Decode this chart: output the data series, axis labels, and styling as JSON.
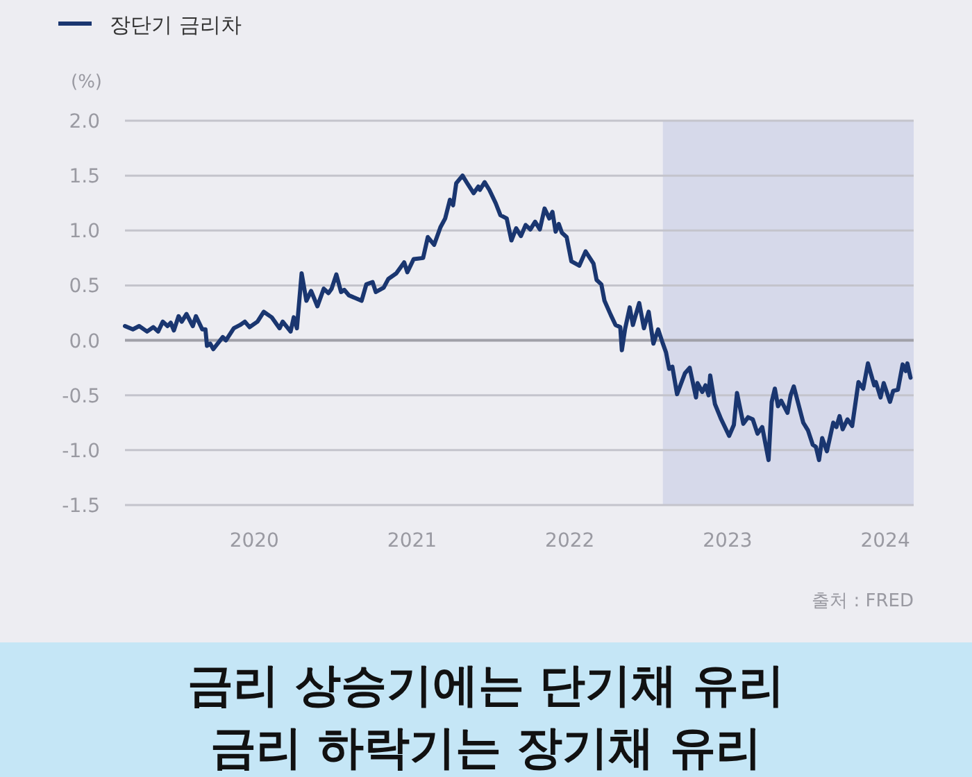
{
  "chart_data": {
    "type": "line",
    "ylabel": "(%)",
    "annotations": [
      "출처 : FRED",
      "금리 상승기에는 단기채 유리",
      "금리 하락기는 장기채 유리"
    ],
    "xlim": [
      2019.18,
      2024.18
    ],
    "xticks": [
      2020,
      2021,
      2022,
      2023,
      2024
    ],
    "ylim": [
      -1.5,
      2.0
    ],
    "yticks": [
      {
        "value": 2.0,
        "label": "2.0"
      },
      {
        "value": 1.5,
        "label": "1.5"
      },
      {
        "value": 1.0,
        "label": "1.0"
      },
      {
        "value": 0.5,
        "label": "0.5"
      },
      {
        "value": 0.0,
        "label": "0.0"
      },
      {
        "value": -0.5,
        "label": "-0.5"
      },
      {
        "value": -1.0,
        "label": "-1.0"
      },
      {
        "value": -1.5,
        "label": "-1.5"
      }
    ],
    "grid": "y",
    "legend": "top left",
    "ref_lines": [
      {
        "axis": "y",
        "value": 0,
        "color": "#a0a0a8"
      }
    ],
    "bands": [
      {
        "axis": "x",
        "from": 2022.59,
        "to": 2024.18,
        "color": "#d6d9ea"
      }
    ],
    "series": [
      {
        "name": "장단기 금리차",
        "color": "#1a3670",
        "x": [
          2019.18,
          2019.23,
          2019.27,
          2019.32,
          2019.36,
          2019.39,
          2019.42,
          2019.45,
          2019.47,
          2019.49,
          2019.52,
          2019.54,
          2019.57,
          2019.61,
          2019.63,
          2019.67,
          2019.69,
          2019.7,
          2019.72,
          2019.74,
          2019.8,
          2019.82,
          2019.87,
          2019.91,
          2019.94,
          2019.97,
          2020.02,
          2020.06,
          2020.11,
          2020.16,
          2020.18,
          2020.23,
          2020.25,
          2020.27,
          2020.3,
          2020.33,
          2020.36,
          2020.4,
          2020.44,
          2020.47,
          2020.49,
          2020.52,
          2020.55,
          2020.57,
          2020.6,
          2020.68,
          2020.71,
          2020.75,
          2020.77,
          2020.82,
          2020.85,
          2020.9,
          2020.95,
          2020.97,
          2021.01,
          2021.07,
          2021.1,
          2021.14,
          2021.18,
          2021.21,
          2021.24,
          2021.26,
          2021.28,
          2021.32,
          2021.35,
          2021.39,
          2021.42,
          2021.43,
          2021.46,
          2021.49,
          2021.53,
          2021.56,
          2021.6,
          2021.63,
          2021.66,
          2021.69,
          2021.72,
          2021.75,
          2021.78,
          2021.81,
          2021.84,
          2021.87,
          2021.89,
          2021.91,
          2021.93,
          2021.95,
          2021.98,
          2022.01,
          2022.06,
          2022.1,
          2022.15,
          2022.17,
          2022.2,
          2022.22,
          2022.26,
          2022.29,
          2022.32,
          2022.33,
          2022.35,
          2022.38,
          2022.4,
          2022.44,
          2022.47,
          2022.5,
          2022.53,
          2022.56,
          2022.59,
          2022.61,
          2022.63,
          2022.65,
          2022.68,
          2022.73,
          2022.76,
          2022.8,
          2022.81,
          2022.84,
          2022.86,
          2022.88,
          2022.89,
          2022.92,
          2022.96,
          2023.01,
          2023.04,
          2023.06,
          2023.1,
          2023.13,
          2023.16,
          2023.19,
          2023.22,
          2023.26,
          2023.28,
          2023.3,
          2023.32,
          2023.34,
          2023.38,
          2023.4,
          2023.42,
          2023.48,
          2023.51,
          2023.54,
          2023.56,
          2023.58,
          2023.6,
          2023.63,
          2023.67,
          2023.69,
          2023.71,
          2023.73,
          2023.76,
          2023.79,
          2023.83,
          2023.86,
          2023.89,
          2023.93,
          2023.94,
          2023.97,
          2023.99,
          2024.03,
          2024.05,
          2024.08,
          2024.11,
          2024.13,
          2024.14,
          2024.16
        ],
        "values": [
          0.13,
          0.1,
          0.13,
          0.08,
          0.12,
          0.08,
          0.17,
          0.13,
          0.16,
          0.09,
          0.22,
          0.17,
          0.24,
          0.13,
          0.22,
          0.1,
          0.1,
          -0.05,
          -0.03,
          -0.08,
          0.03,
          0.0,
          0.11,
          0.14,
          0.17,
          0.12,
          0.17,
          0.26,
          0.21,
          0.11,
          0.17,
          0.08,
          0.21,
          0.11,
          0.61,
          0.36,
          0.45,
          0.31,
          0.47,
          0.43,
          0.47,
          0.6,
          0.44,
          0.46,
          0.41,
          0.36,
          0.51,
          0.53,
          0.44,
          0.48,
          0.56,
          0.61,
          0.71,
          0.62,
          0.74,
          0.75,
          0.94,
          0.87,
          1.03,
          1.11,
          1.28,
          1.23,
          1.43,
          1.5,
          1.43,
          1.34,
          1.4,
          1.37,
          1.44,
          1.37,
          1.25,
          1.14,
          1.11,
          0.91,
          1.02,
          0.95,
          1.05,
          1.01,
          1.08,
          1.01,
          1.2,
          1.11,
          1.17,
          0.99,
          1.06,
          0.98,
          0.94,
          0.72,
          0.68,
          0.81,
          0.7,
          0.55,
          0.51,
          0.36,
          0.23,
          0.14,
          0.12,
          -0.09,
          0.1,
          0.3,
          0.14,
          0.34,
          0.11,
          0.26,
          -0.03,
          0.1,
          -0.03,
          -0.11,
          -0.26,
          -0.24,
          -0.49,
          -0.3,
          -0.25,
          -0.52,
          -0.39,
          -0.47,
          -0.41,
          -0.5,
          -0.32,
          -0.58,
          -0.72,
          -0.87,
          -0.77,
          -0.48,
          -0.76,
          -0.7,
          -0.72,
          -0.85,
          -0.79,
          -1.09,
          -0.56,
          -0.44,
          -0.6,
          -0.55,
          -0.66,
          -0.5,
          -0.42,
          -0.75,
          -0.82,
          -0.95,
          -0.97,
          -1.09,
          -0.89,
          -1.01,
          -0.75,
          -0.79,
          -0.69,
          -0.81,
          -0.72,
          -0.78,
          -0.38,
          -0.44,
          -0.21,
          -0.41,
          -0.38,
          -0.52,
          -0.39,
          -0.56,
          -0.46,
          -0.45,
          -0.22,
          -0.28,
          -0.21,
          -0.34
        ]
      }
    ]
  }
}
